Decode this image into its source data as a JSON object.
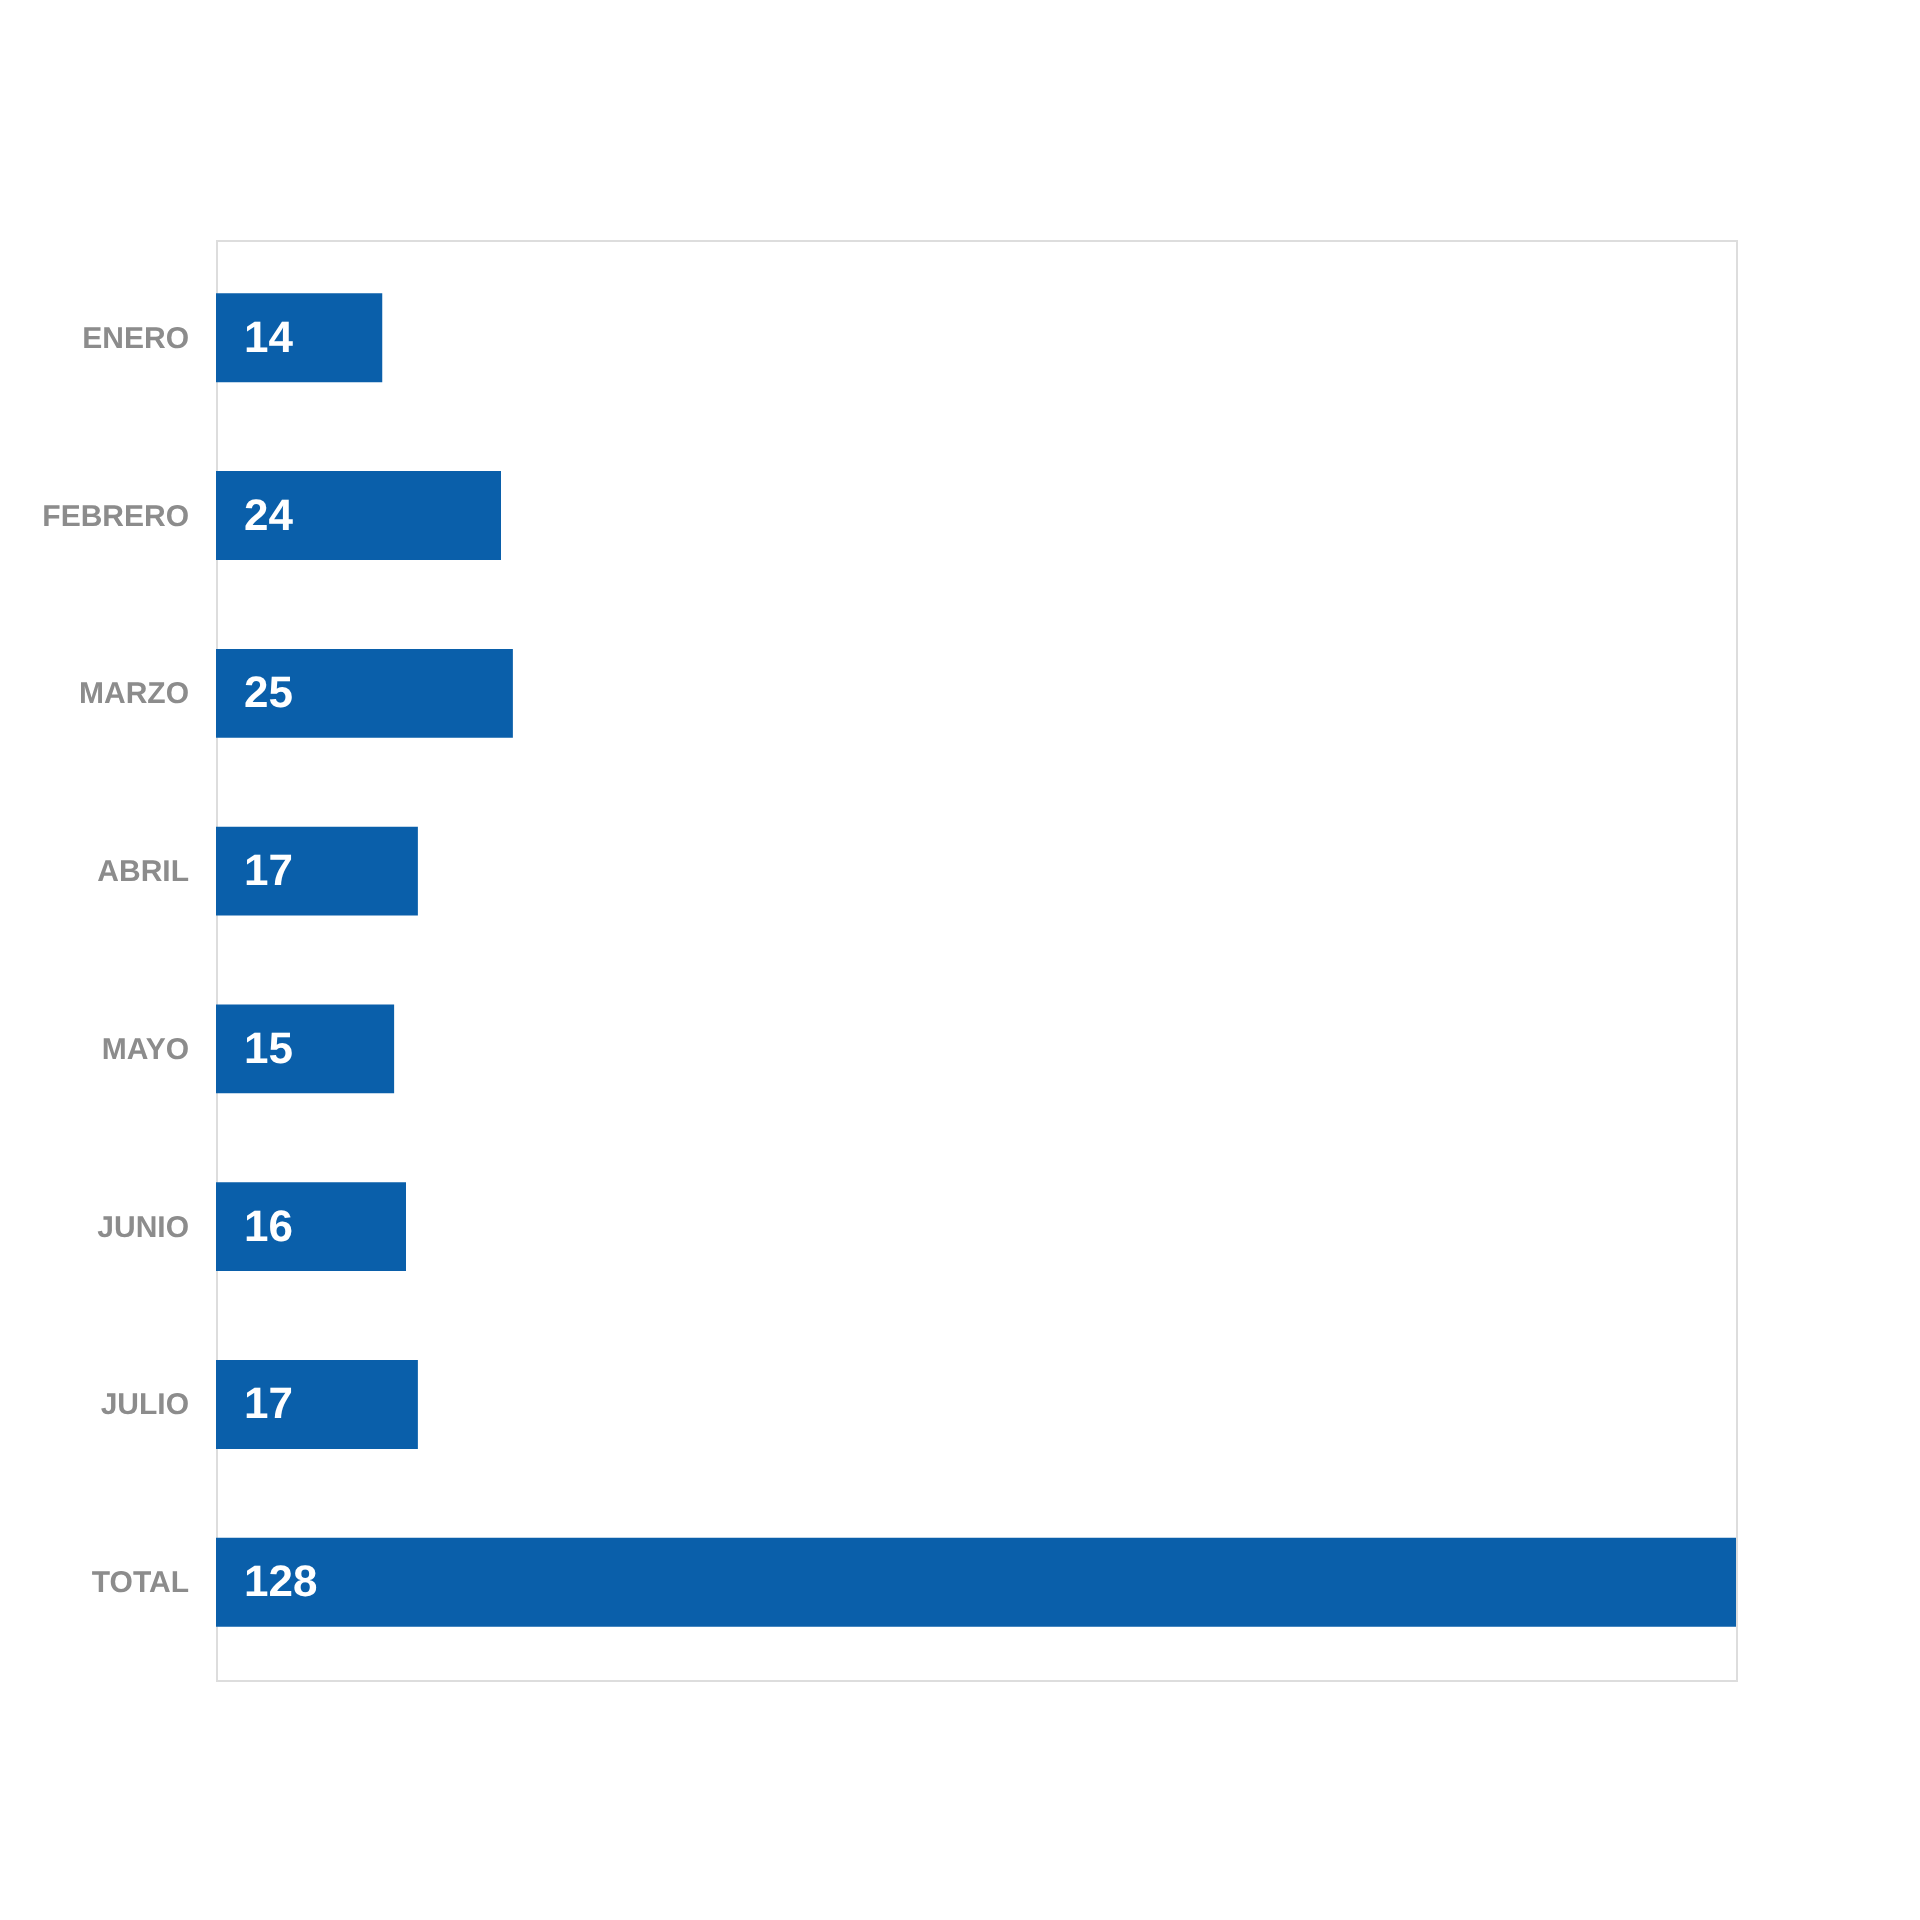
{
  "chart_data": {
    "type": "bar",
    "orientation": "horizontal",
    "categories": [
      "ENERO",
      "FEBRERO",
      "MARZO",
      "ABRIL",
      "MAYO",
      "JUNIO",
      "JULIO",
      "TOTAL"
    ],
    "values": [
      14,
      24,
      25,
      17,
      15,
      16,
      17,
      128
    ],
    "color": "#0a5faa",
    "data_labels": true,
    "grid": false
  }
}
